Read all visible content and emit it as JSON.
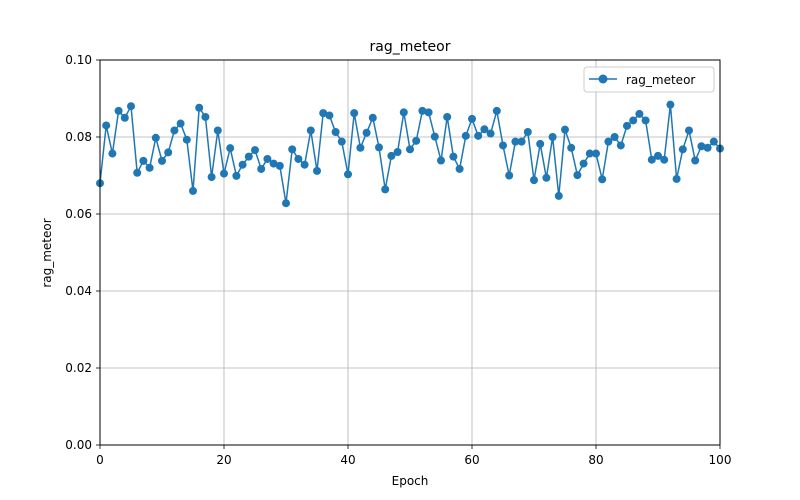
{
  "chart_data": {
    "type": "line",
    "title": "rag_meteor",
    "xlabel": "Epoch",
    "ylabel": "rag_meteor",
    "xlim": [
      0,
      100
    ],
    "ylim": [
      0.0,
      0.1
    ],
    "x_ticks": [
      0,
      20,
      40,
      60,
      80,
      100
    ],
    "y_ticks": [
      0.0,
      0.02,
      0.04,
      0.06,
      0.08,
      0.1
    ],
    "x_tick_labels": [
      "0",
      "20",
      "40",
      "60",
      "80",
      "100"
    ],
    "y_tick_labels": [
      "0.00",
      "0.02",
      "0.04",
      "0.06",
      "0.08",
      "0.10"
    ],
    "grid": true,
    "legend_position": "top-right",
    "series": [
      {
        "name": "rag_meteor",
        "color": "#1f77b4",
        "marker": "circle",
        "x": [
          0,
          1,
          2,
          3,
          4,
          5,
          6,
          7,
          8,
          9,
          10,
          11,
          12,
          13,
          14,
          15,
          16,
          17,
          18,
          19,
          20,
          21,
          22,
          23,
          24,
          25,
          26,
          27,
          28,
          29,
          30,
          31,
          32,
          33,
          34,
          35,
          36,
          37,
          38,
          39,
          40,
          41,
          42,
          43,
          44,
          45,
          46,
          47,
          48,
          49,
          50,
          51,
          52,
          53,
          54,
          55,
          56,
          57,
          58,
          59,
          60,
          61,
          62,
          63,
          64,
          65,
          66,
          67,
          68,
          69,
          70,
          71,
          72,
          73,
          74,
          75,
          76,
          77,
          78,
          79,
          80,
          81,
          82,
          83,
          84,
          85,
          86,
          87,
          88,
          89,
          90,
          91,
          92,
          93,
          94,
          95,
          96,
          97,
          98,
          99,
          100
        ],
        "values": [
          0.068,
          0.083,
          0.0757,
          0.0868,
          0.085,
          0.088,
          0.0707,
          0.0738,
          0.072,
          0.0798,
          0.0738,
          0.076,
          0.0817,
          0.0835,
          0.0793,
          0.066,
          0.0876,
          0.0852,
          0.0696,
          0.0817,
          0.0705,
          0.0771,
          0.0699,
          0.0728,
          0.0749,
          0.0766,
          0.0717,
          0.0743,
          0.0731,
          0.0725,
          0.0628,
          0.0768,
          0.0743,
          0.0728,
          0.0817,
          0.0712,
          0.0862,
          0.0856,
          0.0813,
          0.0788,
          0.0703,
          0.0862,
          0.0772,
          0.0811,
          0.085,
          0.0773,
          0.0664,
          0.0751,
          0.0761,
          0.0864,
          0.0768,
          0.079,
          0.0868,
          0.0864,
          0.0801,
          0.0739,
          0.0852,
          0.0749,
          0.0717,
          0.0803,
          0.0847,
          0.0803,
          0.082,
          0.0809,
          0.0868,
          0.0778,
          0.07,
          0.0788,
          0.0788,
          0.0813,
          0.0688,
          0.0782,
          0.0694,
          0.08,
          0.0647,
          0.0819,
          0.0772,
          0.0701,
          0.0731,
          0.0757,
          0.0757,
          0.069,
          0.0788,
          0.08,
          0.0778,
          0.0829,
          0.0843,
          0.086,
          0.0843,
          0.0741,
          0.0751,
          0.0741,
          0.0884,
          0.0691,
          0.0768,
          0.0817,
          0.0739,
          0.0776,
          0.0772,
          0.0788,
          0.077
        ]
      }
    ]
  }
}
